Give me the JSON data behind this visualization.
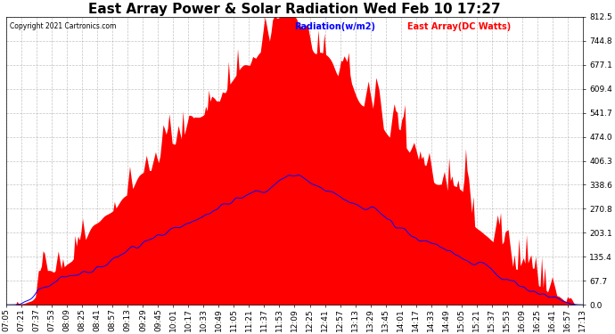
{
  "title": "East Array Power & Solar Radiation Wed Feb 10 17:27",
  "copyright": "Copyright 2021 Cartronics.com",
  "legend_radiation": "Radiation(w/m2)",
  "legend_east_array": "East Array(DC Watts)",
  "legend_radiation_color": "blue",
  "legend_east_array_color": "red",
  "ymax": 812.5,
  "ymin": 0.0,
  "yticks": [
    0.0,
    67.7,
    135.4,
    203.1,
    270.8,
    338.6,
    406.3,
    474.0,
    541.7,
    609.4,
    677.1,
    744.8,
    812.5
  ],
  "background_color": "#ffffff",
  "plot_bg_color": "#ffffff",
  "grid_color": "#aaaaaa",
  "fill_color": "red",
  "line_color": "blue",
  "title_fontsize": 11,
  "tick_fontsize": 6.5,
  "xtick_labels": [
    "07:05",
    "07:21",
    "07:37",
    "07:53",
    "08:09",
    "08:25",
    "08:41",
    "08:57",
    "09:13",
    "09:29",
    "09:45",
    "10:01",
    "10:17",
    "10:33",
    "10:49",
    "11:05",
    "11:21",
    "11:37",
    "11:53",
    "12:09",
    "12:25",
    "12:41",
    "12:57",
    "13:13",
    "13:29",
    "13:45",
    "14:01",
    "14:17",
    "14:33",
    "14:49",
    "15:05",
    "15:21",
    "15:37",
    "15:53",
    "16:09",
    "16:25",
    "16:41",
    "16:57",
    "17:13"
  ]
}
